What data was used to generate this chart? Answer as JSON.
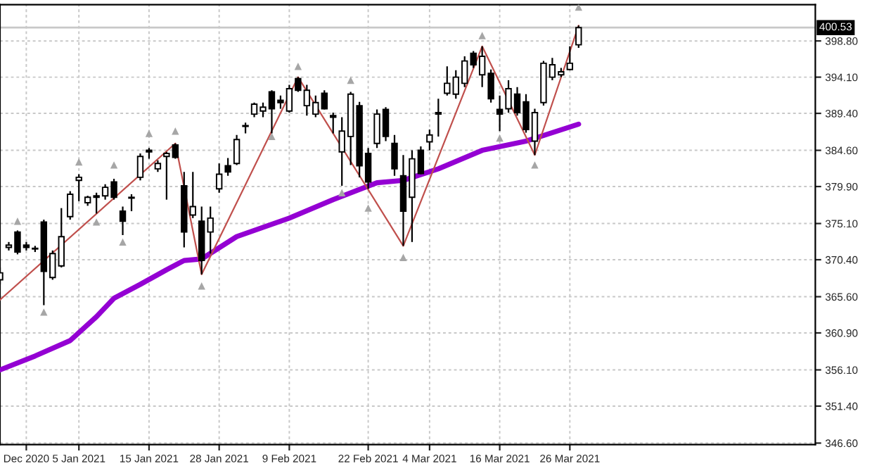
{
  "chart_data": {
    "type": "candlestick",
    "categories": [
      null,
      null,
      null,
      "Dec 2020",
      null,
      null,
      null,
      null,
      null,
      "5 Jan 2021",
      null,
      null,
      null,
      null,
      null,
      null,
      null,
      "15 Jan 2021",
      null,
      null,
      null,
      null,
      null,
      null,
      null,
      "28 Jan 2021",
      null,
      null,
      null,
      null,
      null,
      null,
      null,
      "9 Feb 2021",
      null,
      null,
      null,
      null,
      null,
      null,
      null,
      null,
      "22 Feb 2021",
      null,
      null,
      null,
      null,
      null,
      null,
      "4 Mar 2021",
      null,
      null,
      null,
      null,
      null,
      null,
      null,
      "16 Mar 2021",
      null,
      null,
      null,
      null,
      null,
      null,
      null,
      "26 Mar 2021",
      null,
      null,
      null,
      null,
      null,
      null,
      null,
      null,
      null,
      null,
      null,
      null,
      null,
      null,
      null,
      null,
      null,
      null,
      null,
      null,
      null,
      null,
      null,
      null,
      null,
      null,
      null,
      null
    ],
    "ohlc": [
      [
        367.8,
        369.4,
        367.2,
        368.7
      ],
      [
        372.0,
        372.7,
        371.6,
        372.3
      ],
      [
        374.0,
        374.2,
        371.1,
        371.4
      ],
      [
        372.3,
        372.7,
        371.6,
        372.0
      ],
      [
        371.8,
        372.2,
        371.4,
        371.8
      ],
      [
        375.3,
        375.6,
        364.5,
        368.9
      ],
      [
        368.1,
        371.6,
        367.8,
        371.2
      ],
      [
        369.6,
        377.1,
        369.4,
        373.4
      ],
      [
        376.0,
        379.3,
        375.6,
        378.9
      ],
      [
        380.7,
        381.5,
        378.0,
        381.1
      ],
      [
        377.8,
        378.7,
        377.4,
        378.5
      ],
      [
        378.7,
        379.1,
        376.4,
        378.5
      ],
      [
        378.7,
        380.2,
        378.2,
        379.8
      ],
      [
        380.5,
        380.9,
        378.2,
        378.5
      ],
      [
        376.7,
        377.3,
        373.6,
        375.4
      ],
      [
        378.5,
        378.9,
        376.7,
        378.4
      ],
      [
        381.1,
        384.2,
        380.7,
        383.8
      ],
      [
        384.6,
        384.9,
        383.5,
        384.4
      ],
      [
        382.2,
        383.3,
        381.8,
        382.9
      ],
      [
        383.8,
        384.4,
        378.2,
        384.2
      ],
      [
        385.3,
        385.5,
        383.5,
        383.7
      ],
      [
        380.0,
        381.8,
        372.0,
        374.0
      ],
      [
        376.2,
        381.8,
        375.8,
        377.3
      ],
      [
        375.4,
        377.3,
        368.5,
        370.3
      ],
      [
        374.0,
        377.3,
        371.2,
        375.8
      ],
      [
        379.6,
        382.9,
        379.1,
        381.5
      ],
      [
        382.6,
        383.6,
        381.3,
        381.8
      ],
      [
        382.9,
        386.6,
        382.7,
        386.0
      ],
      [
        387.8,
        388.2,
        386.8,
        387.7
      ],
      [
        389.3,
        390.8,
        388.9,
        390.6
      ],
      [
        389.7,
        390.8,
        388.9,
        390.2
      ],
      [
        392.2,
        392.4,
        386.8,
        390.0
      ],
      [
        391.1,
        391.7,
        390.0,
        390.8
      ],
      [
        389.7,
        393.1,
        389.5,
        392.6
      ],
      [
        393.9,
        394.1,
        392.2,
        392.4
      ],
      [
        390.4,
        393.1,
        389.1,
        392.4
      ],
      [
        389.3,
        391.7,
        388.9,
        390.8
      ],
      [
        392.0,
        392.4,
        389.9,
        390.0
      ],
      [
        389.1,
        389.5,
        386.8,
        388.9
      ],
      [
        384.4,
        388.9,
        380.0,
        387.1
      ],
      [
        386.4,
        392.2,
        382.7,
        391.9
      ],
      [
        390.4,
        390.9,
        381.1,
        382.6
      ],
      [
        384.2,
        384.9,
        379.6,
        380.5
      ],
      [
        385.5,
        389.9,
        384.9,
        389.3
      ],
      [
        389.9,
        390.2,
        385.8,
        386.4
      ],
      [
        385.5,
        386.6,
        381.3,
        382.2
      ],
      [
        381.3,
        384.0,
        372.2,
        376.7
      ],
      [
        378.5,
        384.6,
        372.7,
        383.5
      ],
      [
        384.6,
        385.1,
        381.5,
        381.6
      ],
      [
        385.7,
        387.3,
        384.6,
        386.6
      ],
      [
        389.5,
        391.3,
        386.4,
        389.3
      ],
      [
        392.0,
        395.5,
        391.7,
        393.3
      ],
      [
        391.9,
        395.0,
        391.3,
        394.1
      ],
      [
        393.3,
        396.8,
        392.8,
        396.2
      ],
      [
        397.2,
        397.5,
        395.3,
        395.7
      ],
      [
        394.4,
        398.1,
        392.8,
        396.8
      ],
      [
        394.6,
        395.1,
        390.8,
        391.3
      ],
      [
        389.9,
        391.7,
        387.1,
        389.3
      ],
      [
        390.0,
        393.7,
        389.5,
        392.6
      ],
      [
        391.9,
        392.8,
        389.1,
        389.5
      ],
      [
        390.9,
        391.9,
        386.9,
        387.3
      ],
      [
        385.8,
        390.0,
        384.0,
        389.5
      ],
      [
        390.8,
        396.2,
        390.4,
        395.9
      ],
      [
        394.1,
        396.6,
        393.7,
        395.7
      ],
      [
        394.4,
        395.3,
        394.1,
        394.8
      ],
      [
        395.1,
        398.1,
        395.0,
        395.9
      ],
      [
        398.3,
        400.8,
        397.9,
        400.53
      ],
      null,
      null,
      null,
      null,
      null,
      null,
      null,
      null,
      null,
      null,
      null,
      null,
      null,
      null,
      null,
      null,
      null,
      null,
      null,
      null,
      null,
      null,
      null,
      null,
      null,
      null,
      null
    ],
    "series": [
      {
        "type": "line",
        "color": "#9400d3",
        "values": [
          356.1,
          null,
          null,
          null,
          357.9,
          null,
          null,
          null,
          359.9,
          null,
          null,
          363.0,
          null,
          365.4,
          null,
          null,
          367.2,
          null,
          null,
          369.1,
          null,
          370.3,
          null,
          370.5,
          null,
          null,
          null,
          373.4,
          null,
          null,
          null,
          null,
          null,
          375.8,
          null,
          null,
          null,
          null,
          378.2,
          null,
          null,
          null,
          null,
          380.4,
          null,
          null,
          380.7,
          null,
          null,
          null,
          382.2,
          null,
          null,
          null,
          null,
          384.6,
          null,
          null,
          null,
          null,
          385.8,
          null,
          null,
          null,
          null,
          null,
          388.0,
          null,
          null,
          null,
          null,
          null,
          null,
          null,
          null,
          null,
          null,
          null,
          null,
          null,
          null,
          null,
          null,
          null,
          null,
          null,
          null,
          null,
          null,
          null,
          null,
          null,
          null,
          null
        ]
      },
      {
        "type": "line",
        "color": "#c0504d",
        "values": [
          365.2,
          null,
          null,
          null,
          null,
          null,
          null,
          null,
          null,
          null,
          null,
          null,
          null,
          null,
          null,
          null,
          null,
          null,
          null,
          null,
          385.5,
          null,
          null,
          368.5,
          null,
          null,
          null,
          null,
          null,
          null,
          null,
          null,
          null,
          null,
          394.1,
          null,
          null,
          null,
          null,
          null,
          null,
          null,
          null,
          null,
          null,
          null,
          372.2,
          null,
          null,
          null,
          null,
          null,
          null,
          null,
          null,
          398.1,
          null,
          null,
          null,
          null,
          null,
          384.0,
          null,
          null,
          null,
          null,
          400.8,
          null,
          null,
          null,
          null,
          null,
          null,
          null,
          null,
          null,
          null,
          null,
          null,
          null,
          null,
          null,
          null,
          null,
          null,
          null,
          null,
          null,
          null,
          null,
          null,
          null,
          null,
          null
        ]
      },
      {
        "type": "scatter",
        "color": "#a6a6a6",
        "marker": "triangle",
        "values": [
          null,
          null,
          375.4,
          null,
          null,
          null,
          null,
          null,
          null,
          383.1,
          null,
          null,
          null,
          382.7,
          null,
          null,
          null,
          386.8,
          null,
          null,
          387.1,
          null,
          null,
          null,
          null,
          null,
          null,
          null,
          null,
          null,
          null,
          null,
          null,
          null,
          395.5,
          null,
          null,
          null,
          null,
          null,
          393.7,
          null,
          null,
          null,
          null,
          null,
          null,
          null,
          null,
          null,
          null,
          null,
          null,
          null,
          null,
          399.5,
          null,
          null,
          null,
          null,
          null,
          null,
          null,
          null,
          null,
          null,
          403.2,
          null,
          null,
          null,
          null,
          null,
          null,
          null,
          null,
          null,
          null,
          null,
          null,
          null,
          null,
          null,
          null,
          null,
          null,
          null,
          null,
          null,
          null,
          null,
          null,
          null,
          null,
          null
        ]
      },
      {
        "type": "scatter",
        "color": "#a6a6a6",
        "marker": "triangle",
        "values": [
          null,
          null,
          null,
          null,
          null,
          363.6,
          null,
          null,
          null,
          null,
          null,
          375.3,
          null,
          null,
          372.7,
          null,
          null,
          null,
          null,
          null,
          null,
          null,
          null,
          367.0,
          null,
          null,
          null,
          null,
          null,
          null,
          null,
          386.4,
          null,
          null,
          null,
          null,
          null,
          null,
          null,
          379.1,
          null,
          null,
          377.1,
          null,
          null,
          null,
          370.7,
          null,
          null,
          null,
          null,
          null,
          null,
          null,
          null,
          null,
          null,
          386.2,
          null,
          null,
          null,
          382.7,
          null,
          null,
          null,
          null,
          null,
          null,
          null,
          null,
          null,
          null,
          null,
          null,
          null,
          null,
          null,
          null,
          null,
          null,
          null,
          null,
          null,
          null,
          null,
          null,
          null,
          null,
          null,
          null,
          null,
          null,
          null,
          null
        ]
      }
    ],
    "ylim": [
      346.4,
      403.5
    ],
    "yticks": [
      {
        "value": 346.6,
        "label": "346.60"
      },
      {
        "value": 351.4,
        "label": "351.40"
      },
      {
        "value": 356.1,
        "label": "356.10"
      },
      {
        "value": 360.9,
        "label": "360.90"
      },
      {
        "value": 365.6,
        "label": "365.60"
      },
      {
        "value": 370.4,
        "label": "370.40"
      },
      {
        "value": 375.1,
        "label": "375.10"
      },
      {
        "value": 379.9,
        "label": "379.90"
      },
      {
        "value": 384.6,
        "label": "384.60"
      },
      {
        "value": 389.4,
        "label": "389.40"
      },
      {
        "value": 394.1,
        "label": "394.10"
      },
      {
        "value": 398.8,
        "label": "398.80"
      }
    ],
    "ref_lines": [
      {
        "axis": "y",
        "value": 400.53,
        "label": "400.53",
        "color": "#c8c8c8"
      }
    ],
    "grid": true
  }
}
